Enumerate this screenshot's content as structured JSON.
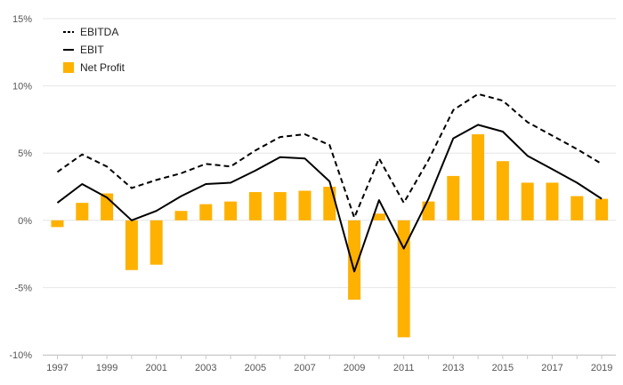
{
  "chart_data": {
    "type": "bar",
    "x": [
      1997,
      1998,
      1999,
      2000,
      2001,
      2002,
      2003,
      2004,
      2005,
      2006,
      2007,
      2008,
      2009,
      2010,
      2011,
      2012,
      2013,
      2014,
      2015,
      2016,
      2017,
      2018,
      2019
    ],
    "x_tick_labels": [
      "1997",
      "1999",
      "2001",
      "2003",
      "2005",
      "2007",
      "2009",
      "2011",
      "2013",
      "2015",
      "2017",
      "2019"
    ],
    "y_tick_labels": [
      "15%",
      "10%",
      "5%",
      "0%",
      "-5%",
      "-10%"
    ],
    "y_ticks": [
      15,
      10,
      5,
      0,
      -5,
      -10
    ],
    "ylim": [
      -10,
      15
    ],
    "grid": true,
    "legend_position": "top-left",
    "title": "",
    "xlabel": "",
    "ylabel": "",
    "series": [
      {
        "name": "EBITDA",
        "type": "line",
        "style": "dashed",
        "color": "#000000",
        "values": [
          3.6,
          4.9,
          4.0,
          2.4,
          3.0,
          3.5,
          4.2,
          4.0,
          5.2,
          6.2,
          6.4,
          5.6,
          0.2,
          4.6,
          1.3,
          4.5,
          8.2,
          9.4,
          8.9,
          7.3,
          6.3,
          5.3,
          4.2
        ]
      },
      {
        "name": "EBIT",
        "type": "line",
        "style": "solid",
        "color": "#000000",
        "values": [
          1.3,
          2.7,
          1.7,
          -0.0,
          0.7,
          1.8,
          2.7,
          2.8,
          3.7,
          4.7,
          4.6,
          2.9,
          -3.8,
          1.5,
          -2.1,
          1.6,
          6.1,
          7.1,
          6.6,
          4.8,
          3.8,
          2.8,
          1.6
        ]
      },
      {
        "name": "Net Profit",
        "type": "bar",
        "color": "#FFB100",
        "values": [
          -0.5,
          1.3,
          2.0,
          -3.7,
          -3.3,
          0.7,
          1.2,
          1.4,
          2.1,
          2.1,
          2.2,
          2.5,
          -5.9,
          0.5,
          -8.7,
          1.4,
          3.3,
          6.4,
          4.4,
          2.8,
          2.8,
          1.8,
          1.6
        ]
      }
    ]
  }
}
